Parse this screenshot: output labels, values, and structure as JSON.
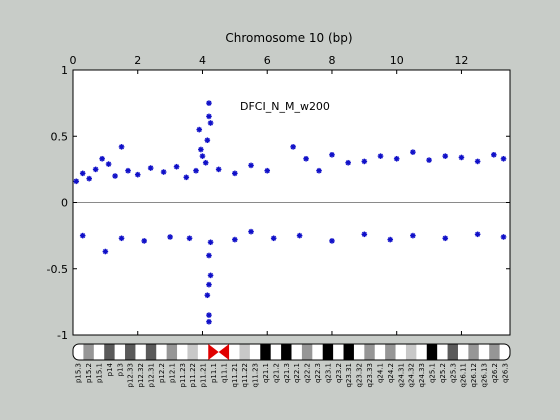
{
  "chart_data": {
    "type": "scatter",
    "title": "Chromosome 10 (bp)",
    "annotation": "DFCI_N_M_w200",
    "x_range": [
      0,
      13.5
    ],
    "x_ticks": [
      0,
      2,
      4,
      6,
      8,
      10,
      12
    ],
    "ylim": [
      -1,
      1
    ],
    "y_ticks": [
      1,
      0.5,
      0,
      -0.5,
      -1
    ],
    "y_tick_labels": [
      "1",
      "0.5",
      "0",
      "-0.5",
      "-1"
    ],
    "baseline": 0,
    "grid": false,
    "series": [
      {
        "color": "#1010c8",
        "marker": "star",
        "points": [
          [
            0.1,
            0.16
          ],
          [
            0.3,
            0.22
          ],
          [
            0.5,
            0.18
          ],
          [
            0.7,
            0.25
          ],
          [
            0.9,
            0.33
          ],
          [
            1.1,
            0.29
          ],
          [
            1.3,
            0.2
          ],
          [
            1.5,
            0.42
          ],
          [
            1.7,
            0.24
          ],
          [
            2.0,
            0.21
          ],
          [
            2.4,
            0.26
          ],
          [
            2.8,
            0.23
          ],
          [
            3.2,
            0.27
          ],
          [
            3.5,
            0.19
          ],
          [
            3.8,
            0.24
          ],
          [
            3.9,
            0.55
          ],
          [
            3.95,
            0.4
          ],
          [
            4.0,
            0.35
          ],
          [
            4.1,
            0.3
          ],
          [
            4.15,
            0.47
          ],
          [
            4.2,
            0.75
          ],
          [
            4.2,
            0.65
          ],
          [
            4.25,
            0.6
          ],
          [
            4.2,
            -0.85
          ],
          [
            4.2,
            -0.9
          ],
          [
            4.15,
            -0.7
          ],
          [
            4.2,
            -0.62
          ],
          [
            4.25,
            -0.55
          ],
          [
            4.2,
            -0.4
          ],
          [
            4.25,
            -0.3
          ],
          [
            4.5,
            0.25
          ],
          [
            5.0,
            0.22
          ],
          [
            5.5,
            0.28
          ],
          [
            6.0,
            0.24
          ],
          [
            6.8,
            0.42
          ],
          [
            7.2,
            0.33
          ],
          [
            7.6,
            0.24
          ],
          [
            8.0,
            0.36
          ],
          [
            8.5,
            0.3
          ],
          [
            9.0,
            0.31
          ],
          [
            9.5,
            0.35
          ],
          [
            10.0,
            0.33
          ],
          [
            10.5,
            0.38
          ],
          [
            11.0,
            0.32
          ],
          [
            11.5,
            0.35
          ],
          [
            12.0,
            0.34
          ],
          [
            12.5,
            0.31
          ],
          [
            13.0,
            0.36
          ],
          [
            13.3,
            0.33
          ],
          [
            0.3,
            -0.25
          ],
          [
            1.0,
            -0.37
          ],
          [
            1.5,
            -0.27
          ],
          [
            2.2,
            -0.29
          ],
          [
            3.0,
            -0.26
          ],
          [
            3.6,
            -0.27
          ],
          [
            5.0,
            -0.28
          ],
          [
            5.5,
            -0.22
          ],
          [
            6.2,
            -0.27
          ],
          [
            7.0,
            -0.25
          ],
          [
            8.0,
            -0.29
          ],
          [
            9.0,
            -0.24
          ],
          [
            9.8,
            -0.28
          ],
          [
            10.5,
            -0.25
          ],
          [
            11.5,
            -0.27
          ],
          [
            12.5,
            -0.24
          ],
          [
            13.3,
            -0.26
          ]
        ]
      }
    ],
    "ideogram": {
      "bands": [
        {
          "label": "p15.3",
          "stain": "gneg"
        },
        {
          "label": "p15.2",
          "stain": "gpos50"
        },
        {
          "label": "p15.1",
          "stain": "gneg"
        },
        {
          "label": "p14",
          "stain": "gpos75"
        },
        {
          "label": "p13",
          "stain": "gneg"
        },
        {
          "label": "p12.33",
          "stain": "gpos75"
        },
        {
          "label": "p12.32",
          "stain": "gneg"
        },
        {
          "label": "p12.31",
          "stain": "gpos75"
        },
        {
          "label": "p12.2",
          "stain": "gneg"
        },
        {
          "label": "p12.1",
          "stain": "gpos50"
        },
        {
          "label": "p11.23",
          "stain": "gneg"
        },
        {
          "label": "p11.22",
          "stain": "gpos25"
        },
        {
          "label": "p11.21",
          "stain": "gneg"
        },
        {
          "label": "p11.1",
          "stain": "acen"
        },
        {
          "label": "q11.1",
          "stain": "acen"
        },
        {
          "label": "q11.21",
          "stain": "gneg"
        },
        {
          "label": "q11.22",
          "stain": "gpos25"
        },
        {
          "label": "q11.23",
          "stain": "gneg"
        },
        {
          "label": "q21.1",
          "stain": "gpos100"
        },
        {
          "label": "q21.2",
          "stain": "gneg"
        },
        {
          "label": "q21.3",
          "stain": "gpos100"
        },
        {
          "label": "q22.1",
          "stain": "gneg"
        },
        {
          "label": "q22.2",
          "stain": "gpos50"
        },
        {
          "label": "q22.3",
          "stain": "gneg"
        },
        {
          "label": "q23.1",
          "stain": "gpos100"
        },
        {
          "label": "q23.2",
          "stain": "gneg"
        },
        {
          "label": "q23.31",
          "stain": "gpos100"
        },
        {
          "label": "q23.32",
          "stain": "gneg"
        },
        {
          "label": "q23.33",
          "stain": "gpos50"
        },
        {
          "label": "q24.1",
          "stain": "gneg"
        },
        {
          "label": "q24.2",
          "stain": "gpos50"
        },
        {
          "label": "q24.31",
          "stain": "gneg"
        },
        {
          "label": "q24.32",
          "stain": "gpos25"
        },
        {
          "label": "q24.33",
          "stain": "gneg"
        },
        {
          "label": "q25.1",
          "stain": "gpos100"
        },
        {
          "label": "q25.2",
          "stain": "gneg"
        },
        {
          "label": "q25.3",
          "stain": "gpos75"
        },
        {
          "label": "q26.11",
          "stain": "gneg"
        },
        {
          "label": "q26.12",
          "stain": "gpos50"
        },
        {
          "label": "q26.13",
          "stain": "gneg"
        },
        {
          "label": "q26.2",
          "stain": "gpos50"
        },
        {
          "label": "q26.3",
          "stain": "gneg"
        }
      ]
    }
  }
}
